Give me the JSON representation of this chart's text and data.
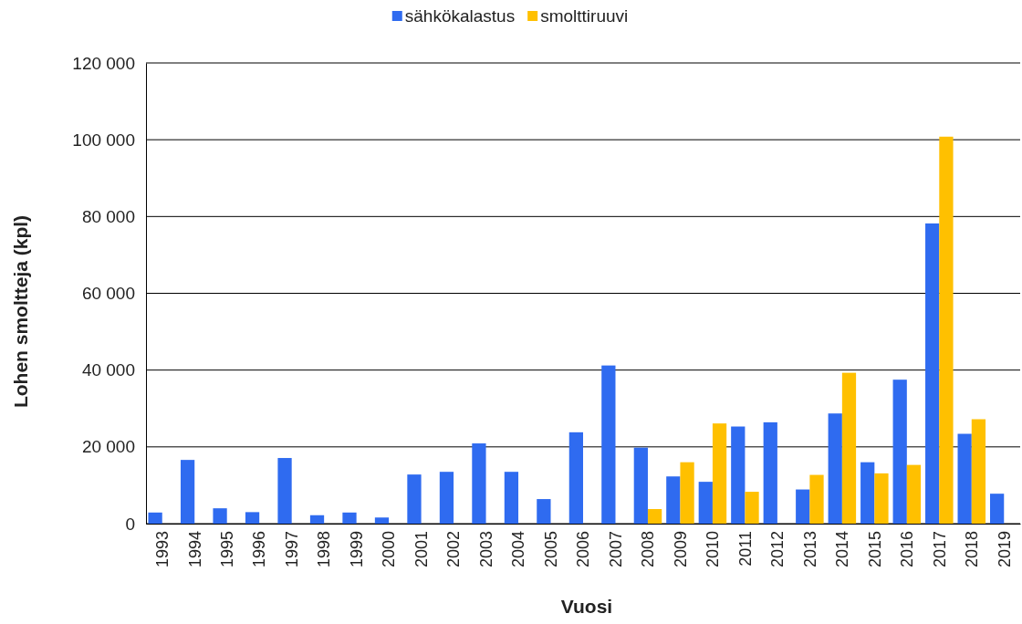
{
  "chart_data": {
    "type": "bar",
    "xlabel": "Vuosi",
    "ylabel": "Lohen smoltteja (kpl)",
    "categories": [
      "1993",
      "1994",
      "1995",
      "1996",
      "1997",
      "1998",
      "1999",
      "2000",
      "2001",
      "2002",
      "2003",
      "2004",
      "2005",
      "2006",
      "2007",
      "2008",
      "2009",
      "2010",
      "2011",
      "2012",
      "2013",
      "2014",
      "2015",
      "2016",
      "2017",
      "2018",
      "2019"
    ],
    "series": [
      {
        "name": "sähkökalastus",
        "color": "#2f6bf0",
        "values": [
          2900,
          16600,
          4000,
          3000,
          17100,
          2200,
          2900,
          1600,
          12800,
          13500,
          20900,
          13500,
          6400,
          23800,
          41200,
          19800,
          12300,
          10900,
          25300,
          26400,
          8900,
          28700,
          16000,
          37500,
          78200,
          23400,
          7800
        ]
      },
      {
        "name": "smolttiruuvi",
        "color": "#ffc000",
        "values": [
          null,
          null,
          null,
          null,
          null,
          null,
          null,
          null,
          null,
          null,
          null,
          null,
          null,
          null,
          null,
          3800,
          16000,
          26100,
          8300,
          null,
          12700,
          39300,
          13100,
          15300,
          100800,
          27200,
          null
        ]
      }
    ],
    "ylim": [
      0,
      120000
    ],
    "yticks": [
      0,
      {
        "value": 20000,
        "label": "20 000"
      },
      {
        "value": 40000,
        "label": "40 000"
      },
      {
        "value": 60000,
        "label": "60 000"
      },
      {
        "value": 80000,
        "label": "80 000"
      },
      {
        "value": 100000,
        "label": "100 000"
      },
      {
        "value": 120000,
        "label": "120 000"
      }
    ],
    "grid": "y",
    "legend": "top"
  }
}
